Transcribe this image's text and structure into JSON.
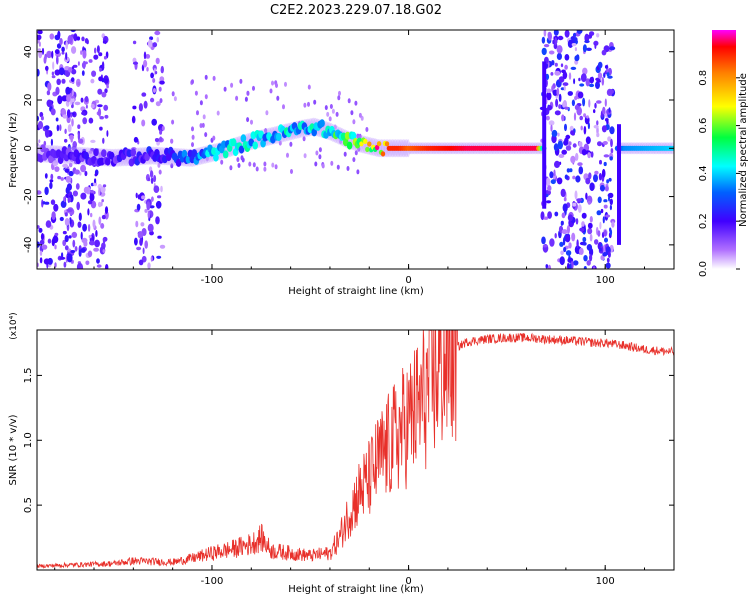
{
  "title": "C2E2.2023.229.07.18.G02",
  "chart_data": [
    {
      "type": "heatmap",
      "xlabel": "Height of straight line (km)",
      "ylabel": "Frequency (Hz)",
      "xlim": [
        -189,
        135
      ],
      "ylim": [
        -50,
        49
      ],
      "x_ticks": [
        -100,
        0,
        100
      ],
      "x_tick_labels": [
        "-100",
        "0",
        "100"
      ],
      "y_ticks": [
        -40,
        -20,
        0,
        20,
        40
      ],
      "y_tick_labels": [
        "-40",
        "-20",
        "0",
        "20",
        "40"
      ],
      "colorbar": {
        "label": "Normalized spectral amplitude",
        "range": [
          0,
          1
        ],
        "ticks": [
          0.0,
          0.2,
          0.4,
          0.6,
          0.8
        ],
        "tick_labels": [
          "0.0",
          "0.2",
          "0.4",
          "0.6",
          "0.8"
        ],
        "colors": [
          "#ffffff",
          "#7f00ff",
          "#0000ff",
          "#00ffff",
          "#00ff00",
          "#ffff00",
          "#ff8000",
          "#ff0000",
          "#ff00ff"
        ]
      },
      "ridge": {
        "x": [
          -189,
          -170,
          -150,
          -130,
          -110,
          -95,
          -80,
          -65,
          -55,
          -48,
          -40,
          -32,
          -25,
          -15,
          -5,
          0,
          10,
          30,
          50,
          65,
          69,
          107,
          110,
          135
        ],
        "freq": [
          -2,
          -3,
          -4,
          -3,
          -4,
          -1,
          3,
          6,
          8,
          9,
          7,
          4,
          2,
          0,
          0,
          0,
          0,
          0,
          0,
          0,
          0,
          0,
          0,
          0
        ],
        "amplitude": [
          0.15,
          0.2,
          0.2,
          0.25,
          0.35,
          0.45,
          0.45,
          0.45,
          0.5,
          0.45,
          0.5,
          0.6,
          0.7,
          0.9,
          0.9,
          0.85,
          0.9,
          0.95,
          0.95,
          0.95,
          0.3,
          0.3,
          0.35,
          0.4
        ]
      }
    },
    {
      "type": "line",
      "xlabel": "Height of straight line (km)",
      "ylabel": "SNR (10 * v/v)",
      "y_scale_label": "(x10⁴)",
      "xlim": [
        -189,
        135
      ],
      "ylim": [
        0,
        18500
      ],
      "x_ticks": [
        -100,
        0,
        100
      ],
      "x_tick_labels": [
        "-100",
        "0",
        "100"
      ],
      "y_ticks": [
        5000,
        10000,
        15000
      ],
      "y_tick_labels": [
        "0.5",
        "1.0",
        "1.5"
      ],
      "series": [
        {
          "color": "#e8302a",
          "x": [
            -189,
            -170,
            -150,
            -140,
            -120,
            -110,
            -100,
            -90,
            -80,
            -75,
            -70,
            -60,
            -50,
            -40,
            -35,
            -30,
            -25,
            -20,
            -15,
            -10,
            -5,
            0,
            5,
            10,
            15,
            20,
            25,
            30,
            40,
            50,
            60,
            70,
            80,
            90,
            95,
            100,
            110,
            120,
            135
          ],
          "y": [
            300,
            400,
            500,
            700,
            600,
            900,
            1300,
            1600,
            2000,
            2500,
            1500,
            1300,
            1100,
            1300,
            2500,
            4500,
            6000,
            7000,
            8500,
            9500,
            10500,
            11500,
            12500,
            14000,
            15500,
            16500,
            17200,
            17600,
            17800,
            17900,
            17900,
            17800,
            17700,
            17600,
            17500,
            17500,
            17300,
            17000,
            16800
          ]
        }
      ]
    }
  ]
}
